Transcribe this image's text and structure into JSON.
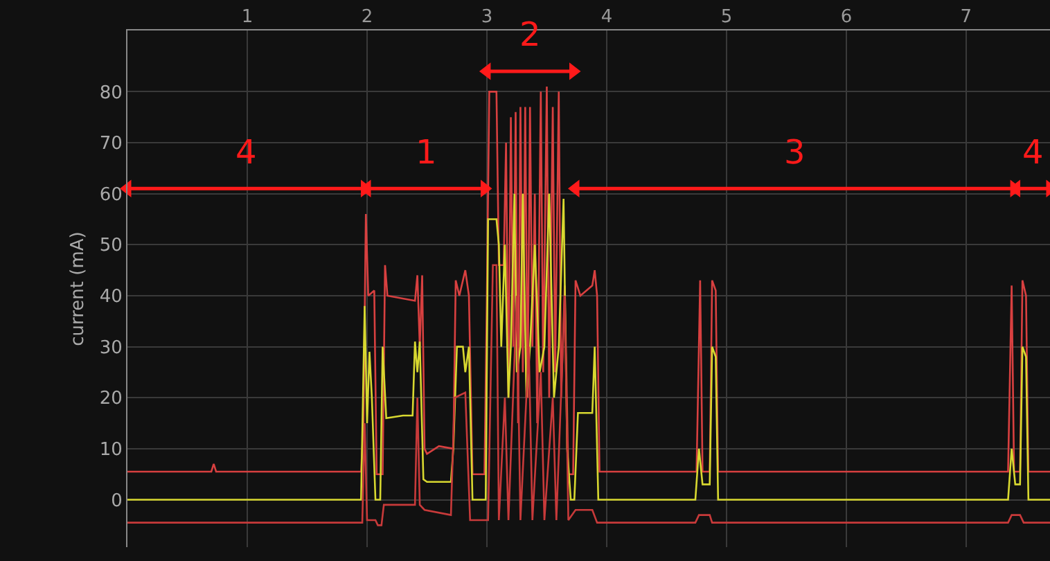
{
  "chart_data": {
    "type": "line",
    "ylabel": "current (mA)",
    "xlim": [
      0,
      7.7
    ],
    "xticks": [
      1,
      2,
      3,
      4,
      5,
      6,
      7
    ],
    "ylim": [
      -9.3,
      92
    ],
    "yticks": [
      0,
      10,
      20,
      30,
      40,
      50,
      60,
      70,
      80
    ],
    "grid": true,
    "legend": false,
    "marker": "none",
    "line_style": "solid",
    "series": [
      {
        "color": "#d84040",
        "x": [
          0,
          0.7,
          0.72,
          0.74,
          1.95,
          1.97,
          1.99,
          2.01,
          2.06,
          2.08,
          2.13,
          2.15,
          2.17,
          2.4,
          2.42,
          2.44,
          2.46,
          2.48,
          2.5,
          2.6,
          2.72,
          2.74,
          2.77,
          2.82,
          2.85,
          2.88,
          2.98,
          3.0,
          3.02,
          3.08,
          3.1,
          3.14,
          3.16,
          3.18,
          3.2,
          3.22,
          3.24,
          3.26,
          3.28,
          3.3,
          3.32,
          3.34,
          3.36,
          3.38,
          3.4,
          3.42,
          3.45,
          3.47,
          3.5,
          3.52,
          3.55,
          3.57,
          3.6,
          3.62,
          3.65,
          3.68,
          3.72,
          3.74,
          3.78,
          3.88,
          3.9,
          3.92,
          3.94,
          4.75,
          4.78,
          4.8,
          4.86,
          4.88,
          4.91,
          4.93,
          7.35,
          7.38,
          7.4,
          7.45,
          7.47,
          7.5,
          7.52,
          7.7
        ],
        "values": [
          5.5,
          5.5,
          7,
          5.5,
          5.5,
          15,
          56,
          40,
          41,
          5,
          5,
          46,
          40,
          39,
          44,
          30,
          44,
          10,
          9,
          10.5,
          10,
          43,
          40,
          45,
          40,
          5,
          5,
          40,
          80,
          80,
          46,
          46,
          70,
          20,
          75,
          30,
          76,
          15,
          77,
          25,
          77,
          20,
          77,
          30,
          60,
          15,
          80,
          25,
          81,
          20,
          77,
          25,
          80,
          20,
          42,
          5,
          5,
          43,
          40,
          42,
          45,
          40,
          5.5,
          5.5,
          43,
          5.5,
          5.5,
          43,
          41,
          5.5,
          5.5,
          42,
          5.5,
          5.5,
          43,
          40,
          5.5,
          5.5
        ]
      },
      {
        "color": "#d8d830",
        "x": [
          0,
          1.95,
          1.98,
          2.0,
          2.02,
          2.04,
          2.07,
          2.11,
          2.13,
          2.16,
          2.3,
          2.38,
          2.4,
          2.42,
          2.44,
          2.47,
          2.5,
          2.7,
          2.72,
          2.75,
          2.8,
          2.82,
          2.85,
          2.88,
          2.99,
          3.01,
          3.08,
          3.1,
          3.12,
          3.15,
          3.18,
          3.2,
          3.23,
          3.25,
          3.28,
          3.3,
          3.33,
          3.36,
          3.4,
          3.44,
          3.48,
          3.52,
          3.56,
          3.6,
          3.64,
          3.67,
          3.7,
          3.73,
          3.76,
          3.88,
          3.9,
          3.93,
          4.74,
          4.77,
          4.8,
          4.86,
          4.88,
          4.91,
          4.93,
          7.35,
          7.38,
          7.41,
          7.45,
          7.47,
          7.5,
          7.52,
          7.7
        ],
        "values": [
          0,
          0,
          38,
          15,
          29,
          20,
          0,
          0,
          30,
          16,
          16.5,
          16.5,
          31,
          25,
          31,
          4,
          3.5,
          3.5,
          10,
          30,
          30,
          25,
          30,
          0,
          0,
          55,
          55,
          50,
          30,
          50,
          20,
          30,
          60,
          25,
          30,
          60,
          20,
          30,
          50,
          25,
          30,
          60,
          20,
          30,
          59,
          10,
          0,
          0,
          17,
          17,
          30,
          0,
          0,
          10,
          3,
          3,
          30,
          28,
          0,
          0,
          10,
          3,
          3,
          30,
          28,
          0,
          0
        ]
      },
      {
        "name": "4",
        "color": "#ff1a1a",
        "marker": "triangle",
        "x": [
          0,
          1.98
        ],
        "values": [
          61,
          61
        ]
      },
      {
        "name": "1",
        "color": "#ff1a1a",
        "marker": "triangle",
        "x": [
          2.0,
          2.98
        ],
        "values": [
          61,
          61
        ]
      },
      {
        "name": "2",
        "color": "#ff1a1a",
        "marker": "triangle",
        "x": [
          3.0,
          3.72
        ],
        "values": [
          84,
          84
        ]
      },
      {
        "name": "3",
        "color": "#ff1a1a",
        "marker": "triangle",
        "x": [
          3.74,
          7.4
        ],
        "values": [
          61,
          61
        ]
      },
      {
        "name": "4",
        "color": "#ff1a1a",
        "marker": "triangle",
        "x": [
          7.42,
          7.7
        ],
        "values": [
          61,
          61
        ]
      },
      {
        "color": "#c83a3a",
        "x": [
          0,
          1.96,
          1.98,
          2.0,
          2.07,
          2.09,
          2.12,
          2.14,
          2.4,
          2.42,
          2.44,
          2.48,
          2.7,
          2.73,
          2.82,
          2.86,
          2.99,
          3.01,
          3.05,
          3.08,
          3.1,
          3.15,
          3.18,
          3.25,
          3.28,
          3.35,
          3.38,
          3.45,
          3.48,
          3.55,
          3.58,
          3.65,
          3.68,
          3.74,
          3.88,
          3.92,
          4.74,
          4.77,
          4.86,
          4.88,
          7.35,
          7.38,
          7.45,
          7.48,
          7.7
        ],
        "values": [
          -4.5,
          -4.5,
          15,
          -4,
          -4,
          -5,
          -5,
          -1,
          -1,
          20,
          -1,
          -2,
          -3,
          20,
          21,
          -4,
          -4,
          -4,
          46,
          46,
          -4,
          20,
          -4,
          40,
          -4,
          30,
          -4,
          25,
          -4,
          20,
          -4,
          40,
          -4,
          -2,
          -2,
          -4.5,
          -4.5,
          -3,
          -3,
          -4.5,
          -4.5,
          -3,
          -3,
          -4.5,
          -4.5
        ]
      }
    ]
  }
}
